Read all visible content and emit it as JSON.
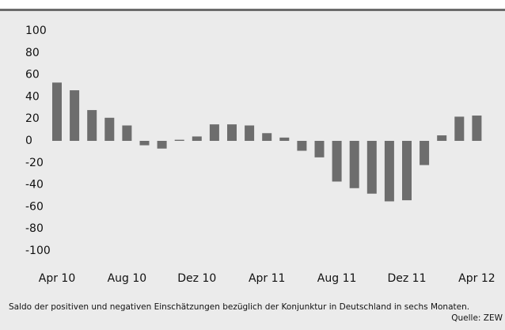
{
  "chart_data": {
    "type": "bar",
    "categories": [
      "Apr 10",
      null,
      null,
      null,
      "Aug 10",
      null,
      null,
      null,
      "Dez 10",
      null,
      null,
      null,
      "Apr 11",
      null,
      null,
      null,
      "Aug 11",
      null,
      null,
      null,
      "Dez 11",
      null,
      null,
      null,
      "Apr 12"
    ],
    "values": [
      53,
      46,
      28,
      21,
      14,
      -4,
      -7,
      1,
      4,
      15,
      15,
      14,
      7,
      3,
      -9,
      -15,
      -37,
      -43,
      -48,
      -55,
      -54,
      -22,
      5,
      22,
      23
    ],
    "color": "#6d6d6d",
    "ylim": [
      -100,
      100
    ],
    "yticks": [
      -100,
      -80,
      -60,
      -40,
      -20,
      0,
      20,
      40,
      60,
      80,
      100
    ],
    "grid": false,
    "note": "Saldo der positiven und negativen Einschätzungen bezüglich der Konjunktur in Deutschland in sechs Monaten.",
    "source": "Quelle: ZEW"
  }
}
